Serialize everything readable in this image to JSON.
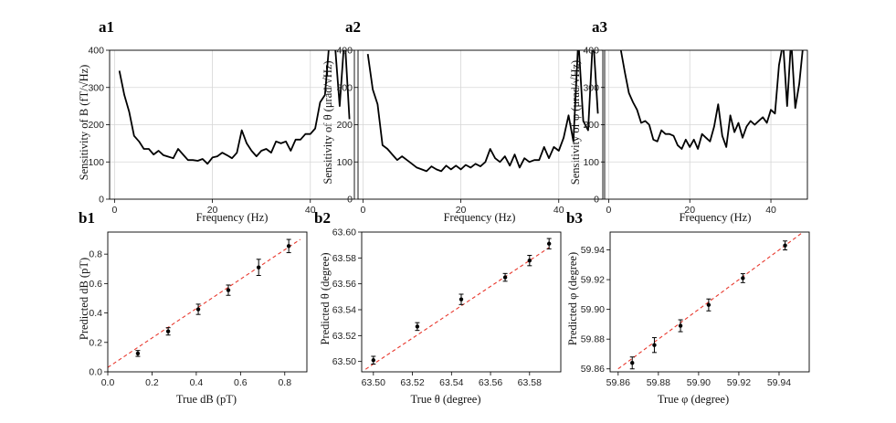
{
  "chart_data": [
    {
      "id": "a1",
      "type": "line",
      "panel_label": "a1",
      "xlabel": "Frequency (Hz)",
      "ylabel": "Sensitivity of B  (fT/√Hz)",
      "xlim": [
        -1,
        49
      ],
      "ylim": [
        0,
        400
      ],
      "xticks": [
        0,
        20,
        40
      ],
      "yticks": [
        0,
        100,
        200,
        300,
        400
      ],
      "grid": true,
      "line_color": "#000000",
      "series": [
        {
          "x": [
            1,
            2,
            3,
            4,
            5,
            6,
            7,
            8,
            9,
            10,
            11,
            12,
            13,
            14,
            15,
            16,
            17,
            18,
            19,
            20,
            21,
            22,
            23,
            24,
            25,
            26,
            27,
            28,
            29,
            30,
            31,
            32,
            33,
            34,
            35,
            36,
            37,
            38,
            39,
            40,
            41,
            42,
            43,
            44,
            45,
            46,
            47,
            48
          ],
          "y": [
            345,
            280,
            235,
            170,
            155,
            135,
            135,
            120,
            130,
            118,
            114,
            110,
            135,
            120,
            105,
            105,
            103,
            108,
            95,
            112,
            115,
            125,
            118,
            110,
            125,
            185,
            150,
            130,
            115,
            130,
            135,
            125,
            155,
            150,
            155,
            130,
            160,
            160,
            175,
            175,
            190,
            260,
            280,
            440,
            420,
            250,
            440,
            215
          ]
        }
      ]
    },
    {
      "id": "a2",
      "type": "line",
      "panel_label": "a2",
      "xlabel": "Frequency (Hz)",
      "ylabel": "Sensitivity of θ  (μrad/√Hz)",
      "xlim": [
        -1,
        49
      ],
      "ylim": [
        0,
        400
      ],
      "xticks": [
        0,
        20,
        40
      ],
      "yticks": [
        0,
        100,
        200,
        300,
        400
      ],
      "grid": true,
      "line_color": "#000000",
      "series": [
        {
          "x": [
            1,
            2,
            3,
            4,
            5,
            6,
            7,
            8,
            9,
            10,
            11,
            12,
            13,
            14,
            15,
            16,
            17,
            18,
            19,
            20,
            21,
            22,
            23,
            24,
            25,
            26,
            27,
            28,
            29,
            30,
            31,
            32,
            33,
            34,
            35,
            36,
            37,
            38,
            39,
            40,
            41,
            42,
            43,
            44,
            45,
            46,
            47,
            48
          ],
          "y": [
            390,
            295,
            255,
            145,
            135,
            120,
            105,
            115,
            105,
            95,
            85,
            80,
            75,
            88,
            80,
            75,
            90,
            80,
            90,
            80,
            92,
            85,
            95,
            88,
            100,
            135,
            110,
            100,
            115,
            90,
            120,
            85,
            110,
            100,
            105,
            105,
            140,
            110,
            140,
            130,
            165,
            225,
            155,
            430,
            210,
            185,
            440,
            230
          ]
        }
      ]
    },
    {
      "id": "a3",
      "type": "line",
      "panel_label": "a3",
      "xlabel": "Frequency (Hz)",
      "ylabel": "Sensitivity of φ  (μrad/√Hz)",
      "xlim": [
        -1,
        49
      ],
      "ylim": [
        0,
        400
      ],
      "xticks": [
        0,
        20,
        40
      ],
      "yticks": [
        0,
        100,
        200,
        300,
        400
      ],
      "grid": true,
      "line_color": "#000000",
      "series": [
        {
          "x": [
            3,
            4,
            5,
            6,
            7,
            8,
            9,
            10,
            11,
            12,
            13,
            14,
            15,
            16,
            17,
            18,
            19,
            20,
            21,
            22,
            23,
            24,
            25,
            26,
            27,
            28,
            29,
            30,
            31,
            32,
            33,
            34,
            35,
            36,
            37,
            38,
            39,
            40,
            41,
            42,
            43,
            44,
            45,
            46,
            47,
            48
          ],
          "y": [
            400,
            340,
            285,
            260,
            240,
            205,
            210,
            200,
            160,
            155,
            185,
            175,
            175,
            170,
            145,
            135,
            160,
            140,
            160,
            135,
            175,
            165,
            155,
            195,
            255,
            170,
            140,
            225,
            180,
            205,
            165,
            195,
            210,
            200,
            210,
            220,
            205,
            240,
            230,
            360,
            420,
            250,
            430,
            245,
            310,
            420
          ]
        }
      ]
    },
    {
      "id": "b1",
      "type": "scatter",
      "panel_label": "b1",
      "xlabel": "True dB (pT)",
      "ylabel": "Predicted  dB  (pT)",
      "xlim": [
        0.0,
        0.9
      ],
      "ylim": [
        0.0,
        0.95
      ],
      "xticks": [
        0.0,
        0.2,
        0.4,
        0.6,
        0.8
      ],
      "yticks": [
        0.0,
        0.2,
        0.4,
        0.6,
        0.8
      ],
      "tick_decimals": 1,
      "grid": false,
      "points": {
        "x": [
          0.136,
          0.273,
          0.409,
          0.545,
          0.682,
          0.818
        ],
        "y": [
          0.125,
          0.275,
          0.425,
          0.555,
          0.71,
          0.855
        ],
        "err": [
          0.02,
          0.025,
          0.035,
          0.035,
          0.055,
          0.045
        ]
      },
      "fit": {
        "x": [
          0.0,
          0.87
        ],
        "y": [
          0.03,
          0.9
        ]
      }
    },
    {
      "id": "b2",
      "type": "scatter",
      "panel_label": "b2",
      "xlabel": "True θ (degree)",
      "ylabel": "Predicted  θ  (degree)",
      "xlim": [
        63.494,
        63.596
      ],
      "ylim": [
        63.492,
        63.6
      ],
      "xticks": [
        63.5,
        63.52,
        63.54,
        63.56,
        63.58
      ],
      "yticks": [
        63.5,
        63.52,
        63.54,
        63.56,
        63.58,
        63.6
      ],
      "tick_decimals": 2,
      "grid": false,
      "points": {
        "x": [
          63.5,
          63.5225,
          63.545,
          63.5675,
          63.58,
          63.59
        ],
        "y": [
          63.501,
          63.527,
          63.548,
          63.565,
          63.578,
          63.591
        ],
        "err": [
          0.003,
          0.003,
          0.004,
          0.003,
          0.004,
          0.004
        ]
      },
      "fit": {
        "x": [
          63.496,
          63.59
        ],
        "y": [
          63.494,
          63.588
        ]
      }
    },
    {
      "id": "b3",
      "type": "scatter",
      "panel_label": "b3",
      "xlabel": "True φ (degree)",
      "ylabel": "Predicted  φ  (degree)",
      "xlim": [
        59.856,
        59.955
      ],
      "ylim": [
        59.858,
        59.952
      ],
      "xticks": [
        59.86,
        59.88,
        59.9,
        59.92,
        59.94
      ],
      "yticks": [
        59.86,
        59.88,
        59.9,
        59.92,
        59.94
      ],
      "tick_decimals": 2,
      "grid": false,
      "points": {
        "x": [
          59.867,
          59.878,
          59.891,
          59.905,
          59.922,
          59.943
        ],
        "y": [
          59.864,
          59.876,
          59.889,
          59.903,
          59.921,
          59.943
        ],
        "err": [
          0.004,
          0.005,
          0.004,
          0.004,
          0.003,
          0.003
        ]
      },
      "fit": {
        "x": [
          59.86,
          59.955
        ],
        "y": [
          59.86,
          59.955
        ]
      }
    }
  ]
}
